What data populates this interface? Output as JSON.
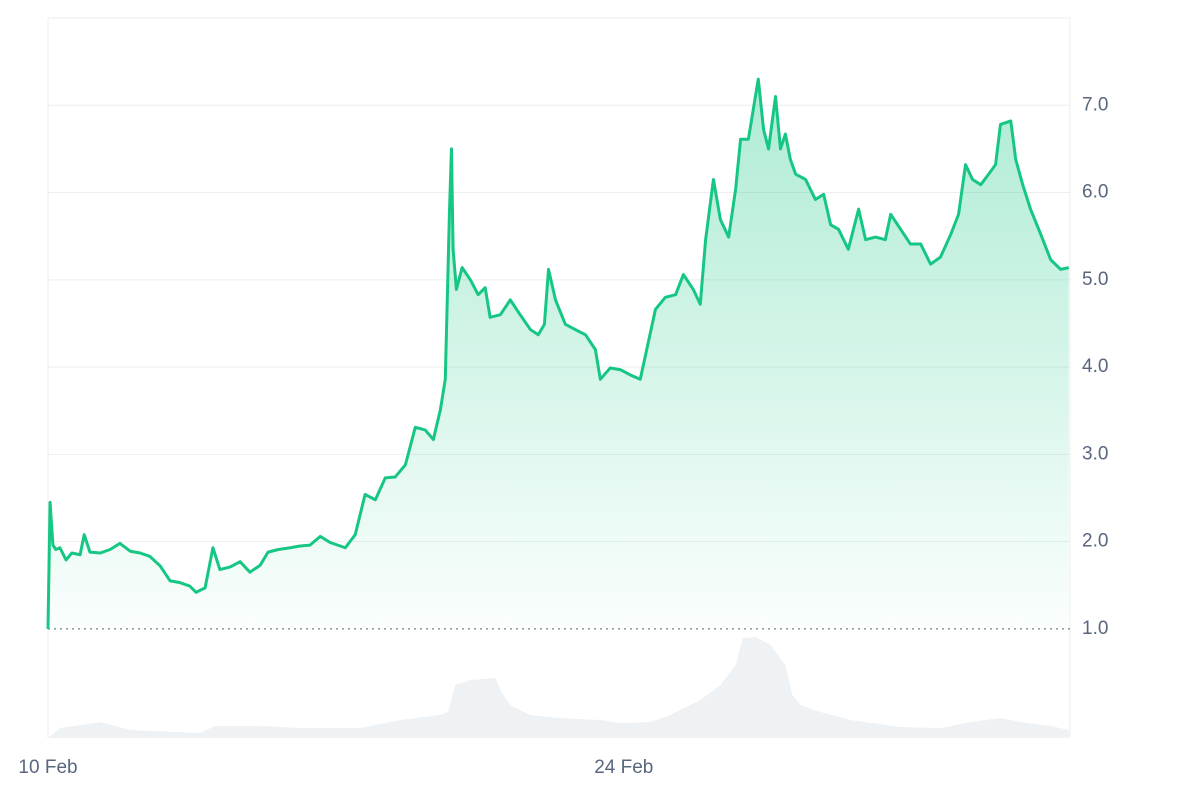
{
  "chart_data": {
    "type": "line",
    "xlim": [
      0,
      24.85
    ],
    "xticks": [
      {
        "value": 0,
        "label": "10 Feb"
      },
      {
        "value": 14,
        "label": "24 Feb"
      }
    ],
    "ylim": [
      -0.25,
      8.0
    ],
    "yticks": [
      {
        "value": 1,
        "label": "1.0"
      },
      {
        "value": 2,
        "label": "2.0"
      },
      {
        "value": 3,
        "label": "3.0"
      },
      {
        "value": 4,
        "label": "4.0"
      },
      {
        "value": 5,
        "label": "5.0"
      },
      {
        "value": 6,
        "label": "6.0"
      },
      {
        "value": 7,
        "label": "7.0"
      }
    ],
    "y2lim": [
      0,
      100
    ],
    "grid": true,
    "series": [
      {
        "color": "#16c784",
        "x": [
          0,
          0.05,
          0.12,
          0.19,
          0.29,
          0.44,
          0.58,
          0.78,
          0.88,
          1.02,
          1.27,
          1.51,
          1.75,
          2.0,
          2.24,
          2.48,
          2.73,
          2.97,
          3.21,
          3.45,
          3.6,
          3.82,
          4.01,
          4.18,
          4.43,
          4.67,
          4.91,
          5.16,
          5.35,
          5.6,
          5.89,
          6.13,
          6.37,
          6.62,
          6.86,
          7.23,
          7.47,
          7.71,
          7.96,
          8.2,
          8.44,
          8.69,
          8.93,
          9.17,
          9.37,
          9.54,
          9.66,
          9.76,
          9.81,
          9.85,
          9.93,
          10.07,
          10.27,
          10.46,
          10.63,
          10.75,
          11.0,
          11.24,
          11.48,
          11.73,
          11.92,
          12.07,
          12.17,
          12.34,
          12.58,
          12.82,
          13.07,
          13.31,
          13.43,
          13.67,
          13.92,
          14.16,
          14.4,
          14.53,
          14.77,
          15.01,
          15.26,
          15.45,
          15.69,
          15.86,
          15.99,
          16.18,
          16.35,
          16.55,
          16.72,
          16.84,
          17.03,
          17.27,
          17.4,
          17.52,
          17.69,
          17.81,
          17.93,
          18.05,
          18.18,
          18.42,
          18.66,
          18.86,
          19.03,
          19.22,
          19.46,
          19.71,
          19.88,
          20.12,
          20.36,
          20.49,
          20.73,
          20.97,
          21.22,
          21.46,
          21.7,
          21.95,
          22.14,
          22.31,
          22.48,
          22.68,
          22.87,
          23.04,
          23.16,
          23.41,
          23.53,
          23.7,
          23.89,
          24.14,
          24.38,
          24.62,
          24.82
        ],
        "values": [
          1.0,
          2.45,
          1.96,
          1.91,
          1.93,
          1.79,
          1.87,
          1.85,
          2.08,
          1.88,
          1.87,
          1.91,
          1.98,
          1.89,
          1.87,
          1.83,
          1.72,
          1.55,
          1.53,
          1.49,
          1.42,
          1.47,
          1.93,
          1.68,
          1.71,
          1.77,
          1.65,
          1.73,
          1.88,
          1.91,
          1.93,
          1.95,
          1.96,
          2.06,
          1.99,
          1.93,
          2.08,
          2.54,
          2.48,
          2.73,
          2.74,
          2.88,
          3.31,
          3.28,
          3.17,
          3.51,
          3.86,
          5.75,
          6.5,
          5.35,
          4.89,
          5.14,
          5.0,
          4.83,
          4.91,
          4.57,
          4.6,
          4.77,
          4.6,
          4.43,
          4.37,
          4.49,
          5.12,
          4.77,
          4.49,
          4.43,
          4.37,
          4.2,
          3.86,
          3.99,
          3.97,
          3.91,
          3.86,
          4.14,
          4.66,
          4.8,
          4.83,
          5.06,
          4.89,
          4.72,
          5.46,
          6.15,
          5.69,
          5.49,
          6.04,
          6.61,
          6.61,
          7.3,
          6.72,
          6.5,
          7.1,
          6.5,
          6.67,
          6.38,
          6.21,
          6.15,
          5.92,
          5.98,
          5.63,
          5.58,
          5.35,
          5.81,
          5.46,
          5.49,
          5.46,
          5.75,
          5.58,
          5.41,
          5.41,
          5.18,
          5.26,
          5.52,
          5.75,
          6.32,
          6.15,
          6.09,
          6.21,
          6.32,
          6.78,
          6.82,
          6.38,
          6.09,
          5.81,
          5.52,
          5.23,
          5.12,
          5.14
        ]
      },
      {
        "color": "#eff2f5",
        "axis": "y2",
        "x": [
          0,
          0.29,
          1.27,
          2.0,
          3.7,
          4.06,
          5.16,
          6.13,
          7.59,
          8.56,
          9.54,
          9.73,
          9.9,
          10.27,
          10.88,
          11.0,
          11.24,
          11.73,
          12.46,
          13.43,
          13.92,
          14.65,
          15.13,
          15.86,
          16.35,
          16.72,
          16.89,
          17.2,
          17.57,
          17.93,
          18.1,
          18.3,
          18.78,
          19.51,
          20.73,
          21.7,
          22.43,
          23.16,
          23.65,
          24.38,
          24.82
        ],
        "values": [
          0,
          1.39,
          2.22,
          1.11,
          0.69,
          1.67,
          1.67,
          1.39,
          1.39,
          2.5,
          3.19,
          3.61,
          7.36,
          8.06,
          8.33,
          6.67,
          4.58,
          3.19,
          2.78,
          2.5,
          2.08,
          2.22,
          3.19,
          5.28,
          7.36,
          10.14,
          13.89,
          14.03,
          12.92,
          10.14,
          5.97,
          4.58,
          3.61,
          2.5,
          1.53,
          1.39,
          2.22,
          2.78,
          2.22,
          1.67,
          1.11
        ]
      }
    ]
  }
}
